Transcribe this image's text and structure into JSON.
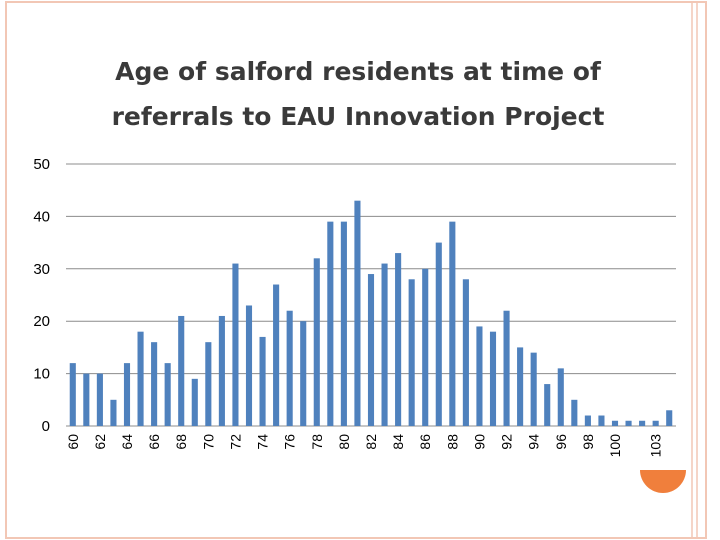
{
  "colors": {
    "background": "#ffffff",
    "border": "#f2c7b5",
    "accent_circle": "#f07f3c",
    "bar": "#4f81bd",
    "grid": "#8c8c8c",
    "title": "#3a3a3a"
  },
  "chart_data": {
    "type": "bar",
    "title_lines": [
      "Age of salford residents at time of",
      "referrals to EAU Innovation Project"
    ],
    "xlabel": "",
    "ylabel": "",
    "ylim": [
      0,
      50
    ],
    "yticks": [
      0,
      10,
      20,
      30,
      40,
      50
    ],
    "grid": true,
    "legend": "none",
    "categories": [
      60,
      61,
      62,
      63,
      64,
      65,
      66,
      67,
      68,
      69,
      70,
      71,
      72,
      73,
      74,
      75,
      76,
      77,
      78,
      79,
      80,
      81,
      82,
      83,
      84,
      85,
      86,
      87,
      88,
      89,
      90,
      91,
      92,
      93,
      94,
      95,
      96,
      97,
      98,
      99,
      100,
      101,
      102,
      103,
      104
    ],
    "values": [
      12,
      10,
      10,
      5,
      12,
      18,
      16,
      12,
      21,
      9,
      16,
      21,
      31,
      23,
      17,
      27,
      22,
      20,
      32,
      39,
      39,
      43,
      29,
      31,
      33,
      28,
      30,
      35,
      39,
      28,
      19,
      18,
      22,
      15,
      14,
      8,
      11,
      5,
      2,
      2,
      1,
      1,
      1,
      1,
      3
    ],
    "xtick_labels": [
      "60",
      "62",
      "64",
      "66",
      "68",
      "70",
      "72",
      "74",
      "76",
      "78",
      "80",
      "82",
      "84",
      "86",
      "88",
      "90",
      "92",
      "94",
      "96",
      "98",
      "100",
      "103"
    ]
  }
}
